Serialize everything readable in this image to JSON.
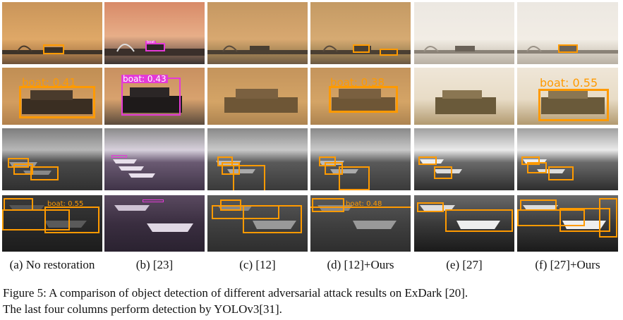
{
  "column_labels": [
    "(a) No restoration",
    "(b) [23]",
    "(c) [12]",
    "(d) [12]+Ours",
    "(e) [27]",
    "(f) [27]+Ours"
  ],
  "caption": {
    "line1": "Figure 5: A comparison of object detection of different adversarial attack results on ExDark [20].",
    "line2": "The last four columns perform detection by YOLOv3[31]."
  },
  "detections": {
    "r1_b_label": "boat",
    "r2_a_label": "boat: 0.41",
    "r2_b_label": "boat: 0.43",
    "r2_d_label": "boat: 0.38",
    "r2_f_label": "boat: 0.55",
    "r4_a_label": "boat: 0.55",
    "r4_d_label": "boat: 0.48"
  },
  "colors": {
    "box_orange": "#ff9a00",
    "box_pink": "#e43ad7",
    "sunset_sky": "#d9a160",
    "dark_sea": "#2a2a2a"
  }
}
